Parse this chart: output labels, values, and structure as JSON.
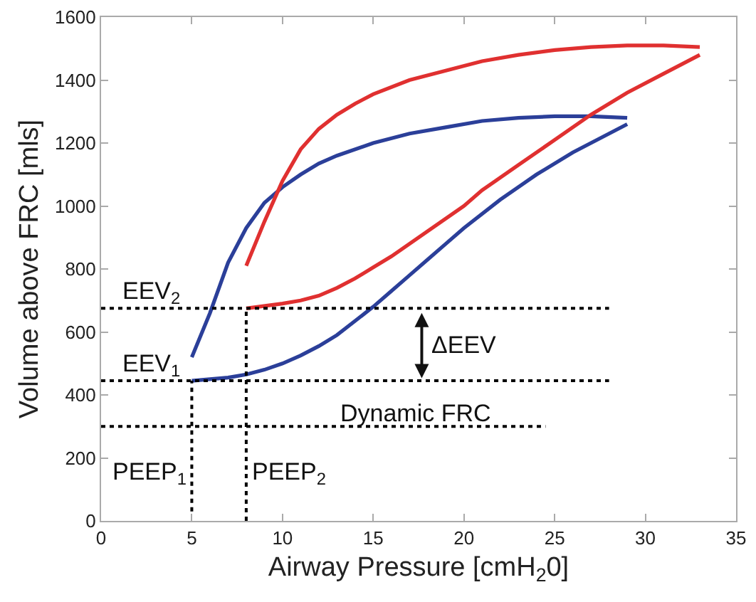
{
  "chart_data": {
    "type": "line",
    "xlabel": "Airway Pressure [cmH$_{2}$0]",
    "ylabel": "Volume above FRC [mls]",
    "xlim": [
      0,
      35
    ],
    "xticks": [
      0,
      5,
      10,
      15,
      20,
      25,
      30,
      35
    ],
    "ylim": [
      0,
      1600
    ],
    "yticks": [
      0,
      200,
      400,
      600,
      800,
      1000,
      1200,
      1400,
      1600
    ],
    "grid": false,
    "line_style": "solid",
    "series": [
      {
        "color": "#2b3f99",
        "x": [
          5,
          6,
          7,
          8,
          9,
          10,
          11,
          12,
          13,
          14,
          15,
          16,
          17,
          18,
          19,
          20,
          22,
          24,
          26,
          28,
          29
        ],
        "values": [
          445,
          450,
          455,
          465,
          480,
          500,
          525,
          555,
          590,
          635,
          680,
          730,
          780,
          830,
          880,
          930,
          1020,
          1100,
          1170,
          1230,
          1260
        ]
      },
      {
        "color": "#2b3f99",
        "x": [
          29,
          27,
          25,
          23,
          21,
          19,
          17,
          15,
          13,
          12,
          11,
          10,
          9,
          8,
          7,
          6,
          5
        ],
        "values": [
          1280,
          1285,
          1285,
          1280,
          1270,
          1250,
          1230,
          1200,
          1160,
          1135,
          1100,
          1060,
          1010,
          930,
          820,
          660,
          520
        ]
      },
      {
        "color": "#e03030",
        "x": [
          8,
          10,
          11,
          12,
          13,
          14,
          15,
          16,
          18,
          20,
          21,
          22,
          23,
          25,
          27,
          29,
          31,
          33
        ],
        "values": [
          675,
          690,
          700,
          715,
          740,
          770,
          805,
          840,
          920,
          1000,
          1050,
          1090,
          1130,
          1210,
          1290,
          1360,
          1420,
          1480
        ]
      },
      {
        "color": "#e03030",
        "x": [
          33,
          31,
          29,
          27,
          25,
          23,
          21,
          19,
          17,
          15,
          14,
          13,
          12,
          11,
          10,
          9,
          8
        ],
        "values": [
          1505,
          1510,
          1510,
          1505,
          1495,
          1480,
          1460,
          1430,
          1400,
          1355,
          1325,
          1290,
          1245,
          1180,
          1080,
          950,
          810
        ]
      },
      {
        "color": "#000000",
        "line_style": "dotted",
        "x": [
          0,
          28
        ],
        "values": [
          675,
          675
        ]
      },
      {
        "color": "#000000",
        "line_style": "dotted",
        "x": [
          0,
          28
        ],
        "values": [
          445,
          445
        ]
      },
      {
        "color": "#000000",
        "line_style": "dotted",
        "x": [
          0,
          24.5
        ],
        "values": [
          300,
          300
        ]
      },
      {
        "color": "#000000",
        "line_style": "dotted",
        "x": [
          5,
          5
        ],
        "values": [
          30,
          445
        ]
      },
      {
        "color": "#000000",
        "line_style": "dotted",
        "x": [
          8,
          8
        ],
        "values": [
          0,
          675
        ]
      }
    ],
    "annotations": [
      {
        "text": "EEV$_{2}$",
        "x": 1,
        "y": 675
      },
      {
        "text": "EEV$_{1}$",
        "x": 1,
        "y": 445
      },
      "ΔEEV",
      {
        "text": "Dynamic FRC",
        "x": 13,
        "y": 300
      },
      {
        "text": "PEEP$_{1}$",
        "x": 5,
        "y": 150
      },
      {
        "text": "PEEP$_{2}$",
        "x": 8,
        "y": 150
      }
    ]
  }
}
